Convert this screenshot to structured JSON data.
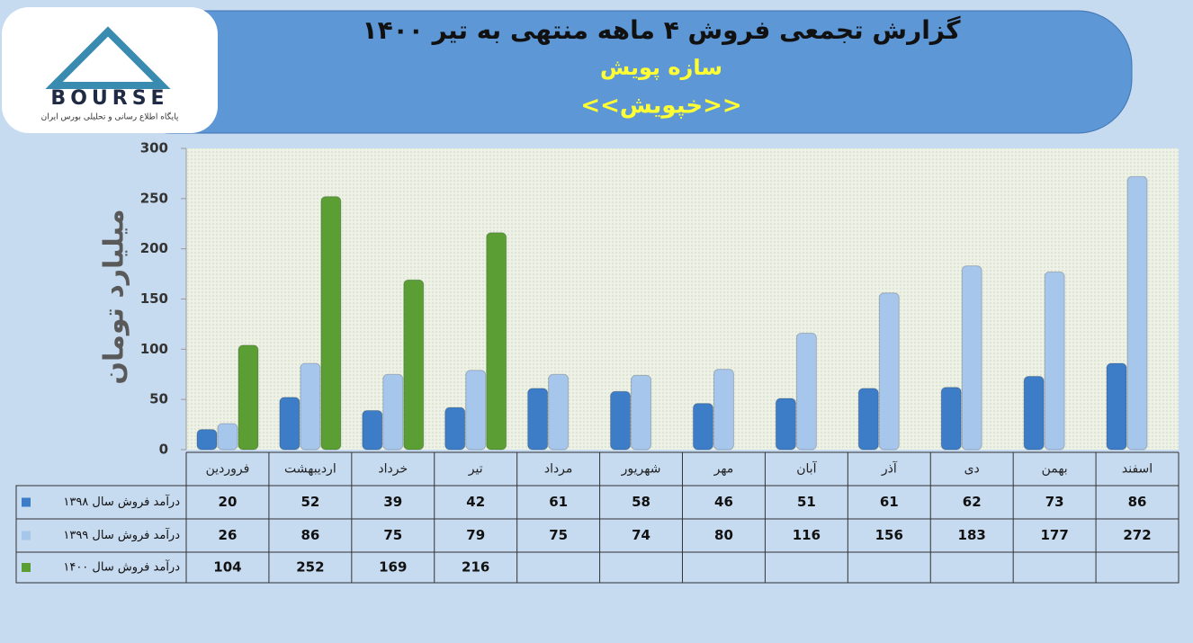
{
  "logo": {
    "text": "BOURSE",
    "tagline": "پایگاه اطلاع رسانی و تحلیلی بورس ایران"
  },
  "chart_data": {
    "type": "bar",
    "title": "گزارش تجمعی فروش ۴ ماهه منتهی به تیر ۱۴۰۰",
    "subtitle": "سازه پویش",
    "symbol": "<<خپویش>>",
    "y_label": "میلیارد تومان",
    "categories": [
      "فروردین",
      "اردیبهشت",
      "خرداد",
      "تیر",
      "مرداد",
      "شهریور",
      "مهر",
      "آبان",
      "آذر",
      "دی",
      "بهمن",
      "اسفند"
    ],
    "series": [
      {
        "name": "درآمد فروش سال ۱۳۹۸",
        "color": "#3d7cc6",
        "values": [
          20,
          52,
          39,
          42,
          61,
          58,
          46,
          51,
          61,
          62,
          73,
          86
        ]
      },
      {
        "name": "درآمد فروش سال ۱۳۹۹",
        "color": "#a7c6ec",
        "values": [
          26,
          86,
          75,
          79,
          75,
          74,
          80,
          116,
          156,
          183,
          177,
          272
        ]
      },
      {
        "name": "درآمد فروش سال ۱۴۰۰",
        "color": "#5a9e34",
        "values": [
          104,
          252,
          169,
          216,
          null,
          null,
          null,
          null,
          null,
          null,
          null,
          null
        ]
      }
    ],
    "ylim": [
      0,
      300
    ],
    "yticks": [
      0,
      50,
      100,
      150,
      200,
      250,
      300
    ],
    "grid": false,
    "data_table": true
  }
}
